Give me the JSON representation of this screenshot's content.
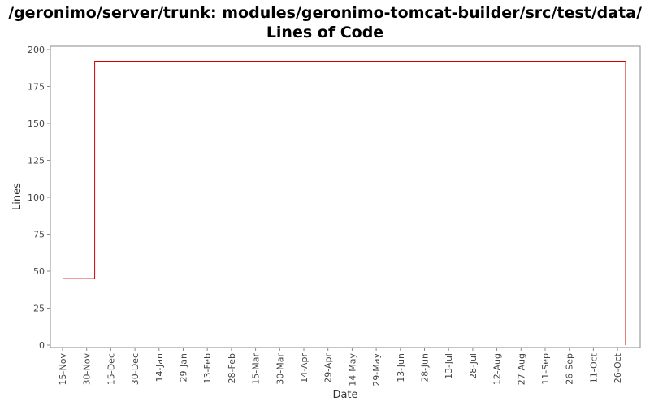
{
  "chart_data": {
    "type": "line",
    "title_line1": "/geronimo/server/trunk: modules/geronimo-tomcat-builder/src/test/data/",
    "title_line2": "Lines of Code",
    "xlabel": "Date",
    "ylabel": "Lines",
    "ylim": [
      0,
      200
    ],
    "y_ticks": [
      0,
      25,
      50,
      75,
      100,
      125,
      150,
      175,
      200
    ],
    "x_tick_labels": [
      "15-Nov",
      "30-Nov",
      "15-Dec",
      "30-Dec",
      "14-Jan",
      "29-Jan",
      "13-Feb",
      "28-Feb",
      "15-Mar",
      "30-Mar",
      "14-Apr",
      "29-Apr",
      "14-May",
      "29-May",
      "13-Jun",
      "28-Jun",
      "13-Jul",
      "28-Jul",
      "12-Aug",
      "27-Aug",
      "11-Sep",
      "26-Sep",
      "11-Oct",
      "26-Oct"
    ],
    "series": [
      {
        "step": true,
        "color": "#cc0000",
        "points": [
          {
            "x": "15-Nov",
            "y": 45
          },
          {
            "x": "05-Dec",
            "y": 192
          },
          {
            "x": "31-Oct",
            "y": 192
          },
          {
            "x": "31-Oct",
            "y": 0
          }
        ]
      }
    ]
  }
}
